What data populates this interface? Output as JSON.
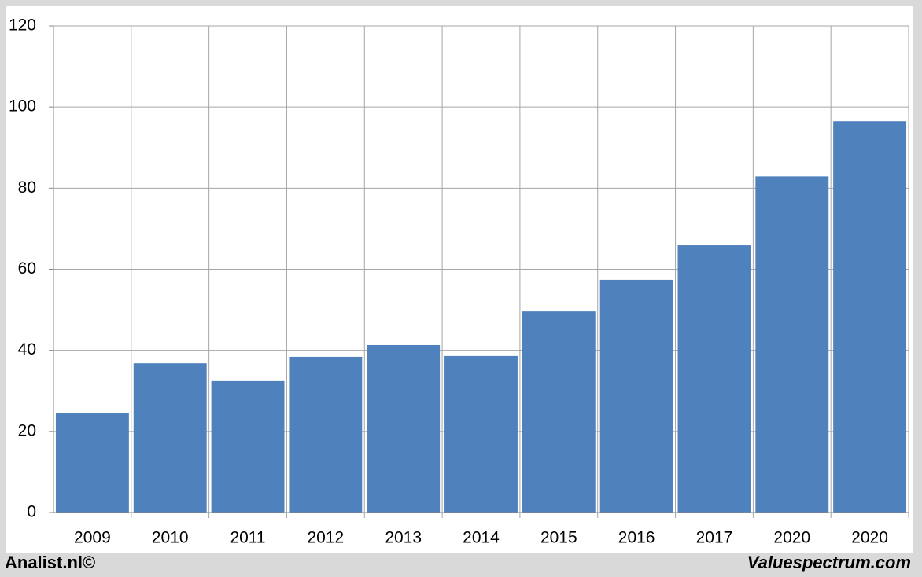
{
  "chart_data": {
    "type": "bar",
    "categories": [
      "2009",
      "2010",
      "2011",
      "2012",
      "2013",
      "2014",
      "2015",
      "2016",
      "2017",
      "2020",
      "2020"
    ],
    "values": [
      24.6,
      36.8,
      32.4,
      38.4,
      41.3,
      38.6,
      49.6,
      57.4,
      65.9,
      82.9,
      96.5
    ],
    "color": "#4f81bd",
    "ylim": [
      0,
      120
    ],
    "yticks": [
      0,
      20,
      40,
      60,
      80,
      100,
      120
    ],
    "grid": true
  },
  "footer": {
    "left": "Analist.nl©",
    "right": "Valuespectrum.com"
  }
}
